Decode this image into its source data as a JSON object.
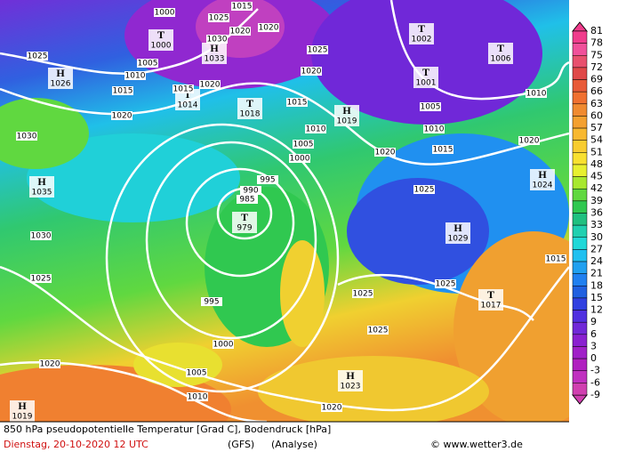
{
  "map": {
    "pressure_centers": [
      {
        "kind": "H",
        "pressure": 1026
      },
      {
        "kind": "T",
        "pressure": 1000
      },
      {
        "kind": "H",
        "pressure": 1033
      },
      {
        "kind": "T",
        "pressure": 1014
      },
      {
        "kind": "T",
        "pressure": 1018
      },
      {
        "kind": "H",
        "pressure": 1019
      },
      {
        "kind": "T",
        "pressure": 1002
      },
      {
        "kind": "T",
        "pressure": 1001
      },
      {
        "kind": "T",
        "pressure": 1006
      },
      {
        "kind": "H",
        "pressure": 1035
      },
      {
        "kind": "T",
        "pressure": 979
      },
      {
        "kind": "H",
        "pressure": 1029
      },
      {
        "kind": "T",
        "pressure": 1017
      },
      {
        "kind": "H",
        "pressure": 1023
      },
      {
        "kind": "H",
        "pressure": 1019
      },
      {
        "kind": "H",
        "pressure": 1024
      }
    ],
    "isobar_labels": [
      1000,
      1025,
      1015,
      1020,
      1020,
      1030,
      1025,
      1005,
      1010,
      1015,
      1015,
      1020,
      1020,
      1025,
      1020,
      1015,
      1010,
      1005,
      1000,
      995,
      990,
      985,
      1005,
      1010,
      1015,
      1020,
      1020,
      1010,
      1030,
      1030,
      1025,
      995,
      1000,
      1005,
      1010,
      1020,
      1025,
      1025,
      1025,
      1025,
      1015,
      1020
    ]
  },
  "legend": {
    "ticks": [
      81,
      78,
      75,
      72,
      69,
      66,
      63,
      60,
      57,
      54,
      51,
      48,
      45,
      42,
      39,
      36,
      33,
      30,
      27,
      24,
      21,
      18,
      15,
      12,
      9,
      6,
      3,
      0,
      -3,
      -6,
      -9
    ],
    "colors": [
      "#f03c8c",
      "#f0509a",
      "#e8506e",
      "#e04848",
      "#e85a38",
      "#f07030",
      "#f08a30",
      "#f4a030",
      "#f8b830",
      "#f8cc30",
      "#f8e030",
      "#e8f030",
      "#a8e830",
      "#60d840",
      "#30c850",
      "#20c080",
      "#20d0b0",
      "#20d8d8",
      "#20c0f0",
      "#20a0f0",
      "#2080f0",
      "#2060e0",
      "#3040e0",
      "#5030e0",
      "#7028d8",
      "#8a20d0",
      "#a020c8",
      "#b020c0",
      "#c030c0",
      "#d040b0"
    ]
  },
  "footer": {
    "title": "850 hPa pseudopotentielle Temperatur [Grad C], Bodendruck [hPa]",
    "date": "Dienstag, 20-10-2020  12 UTC",
    "model": "(GFS)",
    "mode": "(Analyse)",
    "credit": "© www.wetter3.de"
  }
}
